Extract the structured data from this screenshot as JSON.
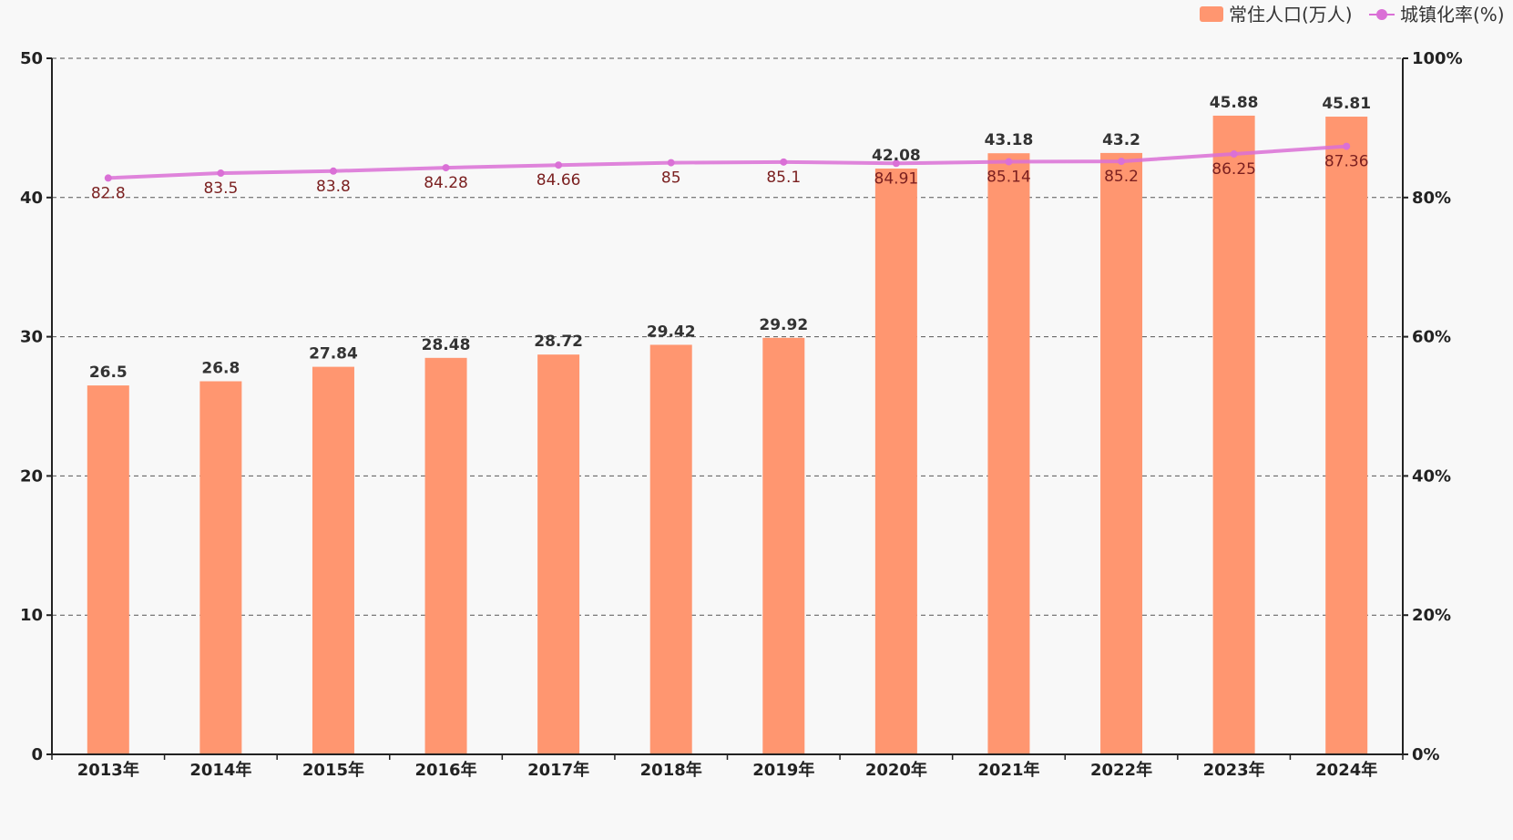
{
  "chart_data": {
    "type": "bar",
    "categories": [
      "2013年",
      "2014年",
      "2015年",
      "2016年",
      "2017年",
      "2018年",
      "2019年",
      "2020年",
      "2021年",
      "2022年",
      "2023年",
      "2024年"
    ],
    "series": [
      {
        "name": "常住人口(万人)",
        "type": "bar",
        "axis": "left",
        "color": "#ff9670",
        "values": [
          26.5,
          26.8,
          27.84,
          28.48,
          28.72,
          29.42,
          29.92,
          42.08,
          43.18,
          43.2,
          45.88,
          45.81
        ]
      },
      {
        "name": "城镇化率(%)",
        "type": "line",
        "axis": "right",
        "color": "#da70d6",
        "values": [
          82.8,
          83.5,
          83.8,
          84.28,
          84.66,
          85,
          85.1,
          84.91,
          85.14,
          85.2,
          86.25,
          87.36
        ]
      }
    ],
    "y_left": {
      "min": 0,
      "max": 50,
      "ticks": [
        "0",
        "10",
        "20",
        "30",
        "40",
        "50"
      ]
    },
    "y_right": {
      "min": 0,
      "max": 100,
      "ticks": [
        "0%",
        "20%",
        "40%",
        "60%",
        "80%",
        "100%"
      ]
    },
    "grid": true,
    "legend_position": "top-right"
  }
}
